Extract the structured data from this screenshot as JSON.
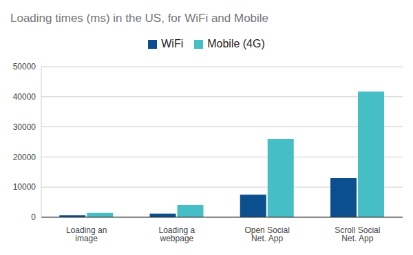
{
  "chart_data": {
    "type": "bar",
    "title": "Loading times (ms) in the US, for WiFi and Mobile",
    "categories": [
      "Loading an image",
      "Loading a webpage",
      "Open Social Net. App",
      "Scroll Social Net. App"
    ],
    "series": [
      {
        "name": "WiFi",
        "color": "#0b4f8f",
        "values": [
          600,
          1200,
          7500,
          13000
        ]
      },
      {
        "name": "Mobile (4G)",
        "color": "#45bec6",
        "values": [
          1400,
          4100,
          26000,
          41700
        ]
      }
    ],
    "ylim": [
      0,
      50000
    ],
    "yticks": [
      0,
      10000,
      20000,
      30000,
      40000,
      50000
    ],
    "grid": true,
    "legend": "top"
  }
}
